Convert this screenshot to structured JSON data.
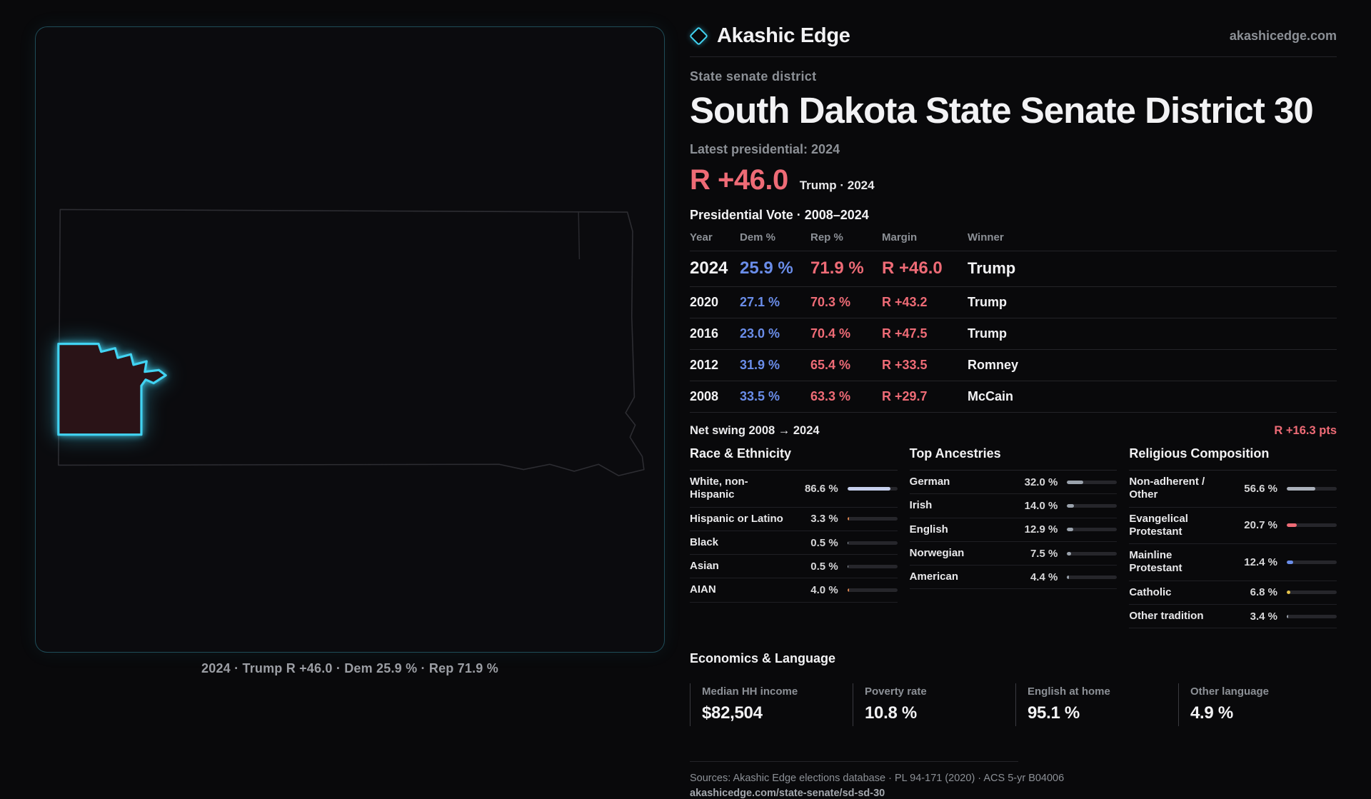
{
  "brand": {
    "name": "Akashic Edge",
    "site": "akashicedge.com"
  },
  "map": {
    "caption": "2024 · Trump R +46.0 · Dem 25.9 % · Rep 71.9 %"
  },
  "header": {
    "kicker": "State senate district",
    "title": "South Dakota State Senate District 30",
    "latest": "Latest presidential: 2024",
    "margin": "R +46.0",
    "margin_context": "Trump · 2024"
  },
  "vote_table": {
    "title": "Presidential Vote · 2008–2024",
    "columns": [
      "Year",
      "Dem %",
      "Rep %",
      "Margin",
      "Winner"
    ],
    "rows": [
      {
        "year": "2024",
        "dem": "25.9 %",
        "rep": "71.9 %",
        "margin": "R +46.0",
        "winner": "Trump"
      },
      {
        "year": "2020",
        "dem": "27.1 %",
        "rep": "70.3 %",
        "margin": "R +43.2",
        "winner": "Trump"
      },
      {
        "year": "2016",
        "dem": "23.0 %",
        "rep": "70.4 %",
        "margin": "R +47.5",
        "winner": "Trump"
      },
      {
        "year": "2012",
        "dem": "31.9 %",
        "rep": "65.4 %",
        "margin": "R +33.5",
        "winner": "Romney"
      },
      {
        "year": "2008",
        "dem": "33.5 %",
        "rep": "63.3 %",
        "margin": "R +29.7",
        "winner": "McCain"
      }
    ]
  },
  "swing": {
    "label": "Net swing 2008 → 2024",
    "value": "R +16.3 pts"
  },
  "demographics": [
    {
      "title": "Race & Ethnicity",
      "rows": [
        {
          "label": "White, non-Hispanic",
          "value": "86.6 %",
          "pct": 86.6,
          "color": "#c6cfec"
        },
        {
          "label": "Hispanic or Latino",
          "value": "3.3 %",
          "pct": 3.3,
          "color": "#e0854e"
        },
        {
          "label": "Black",
          "value": "0.5 %",
          "pct": 0.5,
          "color": "#9aa2ac"
        },
        {
          "label": "Asian",
          "value": "0.5 %",
          "pct": 0.5,
          "color": "#9aa2ac"
        },
        {
          "label": "AIAN",
          "value": "4.0 %",
          "pct": 4.0,
          "color": "#e0854e"
        }
      ]
    },
    {
      "title": "Top Ancestries",
      "rows": [
        {
          "label": "German",
          "value": "32.0 %",
          "pct": 32.0,
          "color": "#9aa2ac"
        },
        {
          "label": "Irish",
          "value": "14.0 %",
          "pct": 14.0,
          "color": "#9aa2ac"
        },
        {
          "label": "English",
          "value": "12.9 %",
          "pct": 12.9,
          "color": "#9aa2ac"
        },
        {
          "label": "Norwegian",
          "value": "7.5 %",
          "pct": 7.5,
          "color": "#9aa2ac"
        },
        {
          "label": "American",
          "value": "4.4 %",
          "pct": 4.4,
          "color": "#9aa2ac"
        }
      ]
    },
    {
      "title": "Religious Composition",
      "rows": [
        {
          "label": "Non-adherent / Other",
          "value": "56.6 %",
          "pct": 56.6,
          "color": "#aab0ba"
        },
        {
          "label": "Evangelical Protestant",
          "value": "20.7 %",
          "pct": 20.7,
          "color": "#ee6b76"
        },
        {
          "label": "Mainline Protestant",
          "value": "12.4 %",
          "pct": 12.4,
          "color": "#6a8de9"
        },
        {
          "label": "Catholic",
          "value": "6.8 %",
          "pct": 6.8,
          "color": "#e6c34a"
        },
        {
          "label": "Other tradition",
          "value": "3.4 %",
          "pct": 3.4,
          "color": "#9aa2ac"
        }
      ]
    }
  ],
  "economics": {
    "title": "Economics & Language",
    "stats": [
      {
        "label": "Median HH income",
        "value": "$82,504"
      },
      {
        "label": "Poverty rate",
        "value": "10.8 %"
      },
      {
        "label": "English at home",
        "value": "95.1 %"
      },
      {
        "label": "Other language",
        "value": "4.9 %"
      }
    ]
  },
  "footer": {
    "sources": "Sources: Akashic Edge elections database · PL 94-171 (2020) · ACS 5-yr B04006",
    "permalink": "akashicedge.com/state-senate/sd-sd-30"
  },
  "colors": {
    "accent_cyan": "#41d3f2",
    "rep_red": "#ee6b76",
    "dem_blue": "#6a8de9"
  }
}
